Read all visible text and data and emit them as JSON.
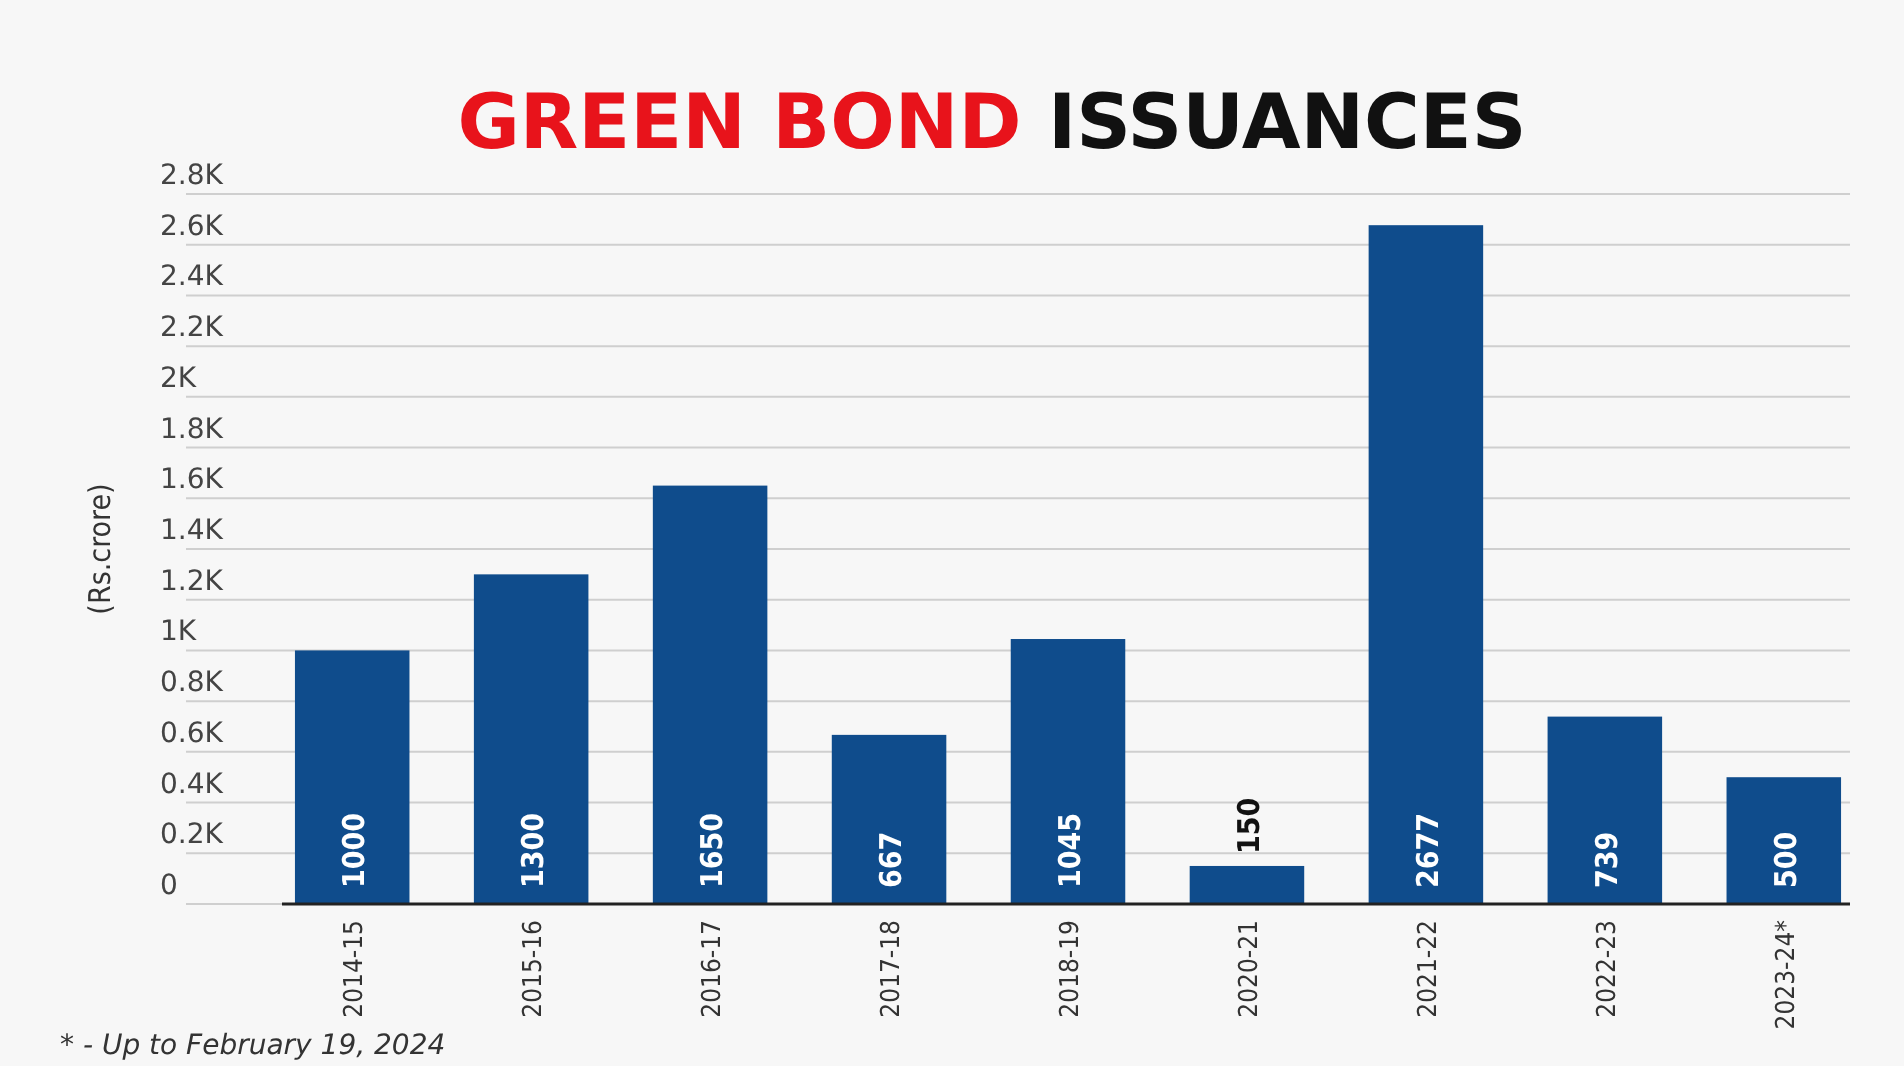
{
  "chart_data": {
    "type": "bar",
    "title": "GREEN BOND ISSUANCES",
    "ylabel": "(Rs.crore)",
    "categories": [
      "2014-15",
      "2015-16",
      "2016-17",
      "2017-18",
      "2018-19",
      "2020-21",
      "2021-22",
      "2022-23",
      "2023-24*"
    ],
    "values": [
      1000,
      1300,
      1650,
      667,
      1045,
      150,
      2677,
      739,
      500
    ],
    "color": "#0f4c8c",
    "data_labels": true,
    "grid": "y",
    "ylim": [
      0,
      2800
    ],
    "yticks": [
      {
        "value": 0,
        "label": "0"
      },
      {
        "value": 200,
        "label": "0.2K"
      },
      {
        "value": 400,
        "label": "0.4K"
      },
      {
        "value": 600,
        "label": "0.6K"
      },
      {
        "value": 800,
        "label": "0.8K"
      },
      {
        "value": 1000,
        "label": "1K"
      },
      {
        "value": 1200,
        "label": "1.2K"
      },
      {
        "value": 1400,
        "label": "1.4K"
      },
      {
        "value": 1600,
        "label": "1.6K"
      },
      {
        "value": 1800,
        "label": "1.8K"
      },
      {
        "value": 2000,
        "label": "2K"
      },
      {
        "value": 2200,
        "label": "2.2K"
      },
      {
        "value": 2400,
        "label": "2.4K"
      },
      {
        "value": 2600,
        "label": "2.6K"
      },
      {
        "value": 2800,
        "label": "2.8K"
      }
    ],
    "annotations": [
      "* - Up to February 19, 2024"
    ]
  }
}
